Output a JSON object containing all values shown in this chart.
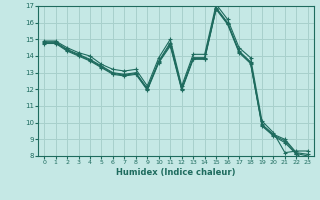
{
  "xlabel": "Humidex (Indice chaleur)",
  "ylabel": "",
  "bg_color": "#c5e8e5",
  "grid_color": "#a8d0cc",
  "line_color": "#1e6b5e",
  "xlim": [
    -0.5,
    23.5
  ],
  "ylim": [
    8,
    17
  ],
  "xticks": [
    0,
    1,
    2,
    3,
    4,
    5,
    6,
    7,
    8,
    9,
    10,
    11,
    12,
    13,
    14,
    15,
    16,
    17,
    18,
    19,
    20,
    21,
    22,
    23
  ],
  "yticks": [
    8,
    9,
    10,
    11,
    12,
    13,
    14,
    15,
    16,
    17
  ],
  "lines": [
    [
      14.9,
      14.9,
      14.5,
      14.2,
      14.0,
      13.5,
      13.2,
      13.1,
      13.2,
      12.2,
      13.9,
      15.0,
      12.2,
      14.1,
      14.1,
      17.1,
      16.2,
      14.5,
      13.9,
      10.1,
      9.4,
      8.2,
      8.3,
      8.3
    ],
    [
      14.85,
      14.85,
      14.4,
      14.1,
      13.8,
      13.4,
      13.0,
      12.9,
      13.0,
      12.05,
      13.7,
      14.8,
      12.05,
      13.9,
      13.9,
      16.9,
      16.0,
      14.3,
      13.65,
      9.9,
      9.3,
      9.0,
      8.2,
      8.1
    ],
    [
      14.8,
      14.8,
      14.35,
      14.05,
      13.75,
      13.35,
      12.95,
      12.85,
      12.95,
      12.0,
      13.65,
      14.7,
      12.0,
      13.85,
      13.85,
      16.85,
      15.95,
      14.25,
      13.6,
      9.85,
      9.25,
      8.9,
      8.15,
      8.0
    ],
    [
      14.75,
      14.75,
      14.3,
      14.0,
      13.7,
      13.3,
      12.9,
      12.8,
      12.9,
      11.95,
      13.6,
      14.6,
      11.95,
      13.8,
      13.8,
      16.8,
      15.9,
      14.2,
      13.55,
      9.8,
      9.2,
      8.8,
      8.1,
      7.7
    ]
  ]
}
